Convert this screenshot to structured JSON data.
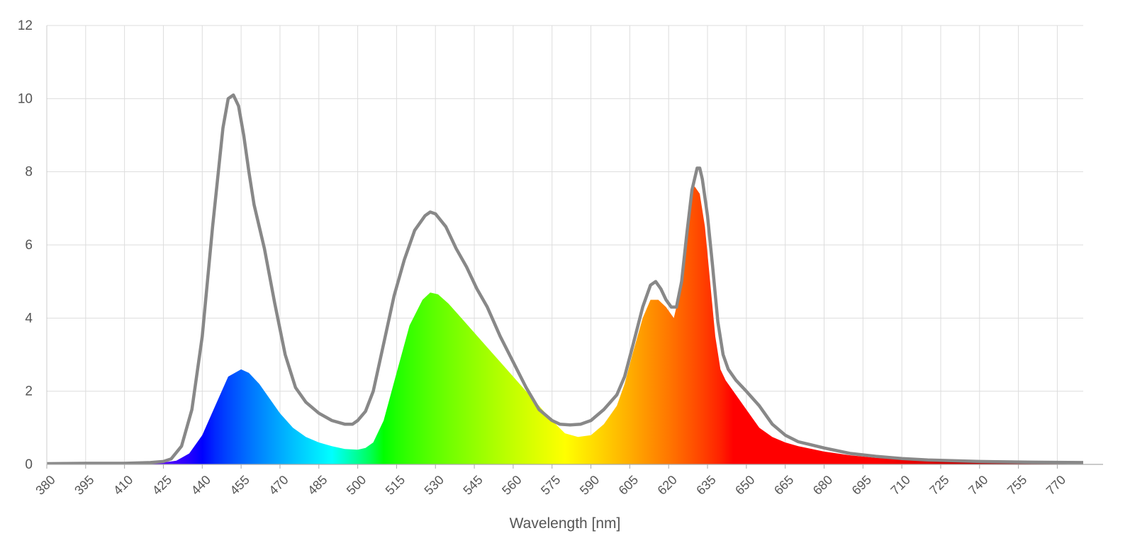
{
  "chart_data": {
    "type": "area",
    "title": "",
    "xlabel": "Wavelength [nm]",
    "ylabel": "",
    "xlim": [
      380,
      780
    ],
    "ylim": [
      0,
      12
    ],
    "yticks": [
      0,
      2,
      4,
      6,
      8,
      10,
      12
    ],
    "xticks": [
      380,
      395,
      410,
      425,
      440,
      455,
      470,
      485,
      500,
      515,
      530,
      545,
      560,
      575,
      590,
      605,
      620,
      635,
      650,
      665,
      680,
      695,
      710,
      725,
      740,
      755,
      770
    ],
    "grid": true,
    "legend": "none",
    "series": [
      {
        "style": "spectral-colored-area",
        "x": [
          380,
          395,
          410,
          420,
          425,
          430,
          435,
          440,
          445,
          450,
          455,
          458,
          462,
          466,
          470,
          475,
          480,
          485,
          490,
          495,
          500,
          503,
          506,
          510,
          515,
          520,
          525,
          528,
          531,
          535,
          540,
          545,
          550,
          555,
          560,
          565,
          570,
          575,
          580,
          585,
          590,
          595,
          600,
          603,
          606,
          610,
          613,
          616,
          619,
          622,
          624,
          626,
          628,
          630,
          632,
          634,
          636,
          638,
          640,
          642,
          645,
          650,
          655,
          660,
          665,
          670,
          680,
          690,
          700,
          710,
          720,
          740,
          760,
          770,
          780
        ],
        "values": [
          0.02,
          0.03,
          0.03,
          0.04,
          0.05,
          0.1,
          0.3,
          0.8,
          1.6,
          2.4,
          2.6,
          2.5,
          2.2,
          1.8,
          1.4,
          1.0,
          0.75,
          0.6,
          0.5,
          0.42,
          0.4,
          0.45,
          0.6,
          1.2,
          2.5,
          3.8,
          4.5,
          4.7,
          4.65,
          4.4,
          4.0,
          3.6,
          3.2,
          2.8,
          2.4,
          2.0,
          1.6,
          1.2,
          0.85,
          0.75,
          0.8,
          1.1,
          1.6,
          2.2,
          3.0,
          4.0,
          4.5,
          4.5,
          4.3,
          4.0,
          4.6,
          6.0,
          7.2,
          7.6,
          7.4,
          6.5,
          5.0,
          3.5,
          2.6,
          2.3,
          2.0,
          1.5,
          1.0,
          0.75,
          0.6,
          0.5,
          0.35,
          0.25,
          0.18,
          0.14,
          0.1,
          0.07,
          0.05,
          0.06,
          0.05
        ]
      },
      {
        "style": "gray-line",
        "color": "#888888",
        "x": [
          380,
          395,
          410,
          420,
          425,
          428,
          432,
          436,
          440,
          444,
          448,
          450,
          452,
          454,
          456,
          458,
          460,
          464,
          468,
          472,
          476,
          480,
          485,
          490,
          495,
          498,
          500,
          503,
          506,
          510,
          514,
          518,
          522,
          526,
          528,
          530,
          534,
          538,
          542,
          546,
          550,
          555,
          560,
          565,
          570,
          575,
          578,
          582,
          586,
          590,
          595,
          600,
          603,
          606,
          610,
          613,
          615,
          617,
          619,
          621,
          623,
          625,
          627,
          629,
          631,
          632,
          633,
          635,
          637,
          639,
          641,
          643,
          646,
          650,
          655,
          660,
          665,
          670,
          680,
          690,
          700,
          710,
          720,
          740,
          760,
          780
        ],
        "values": [
          0.02,
          0.03,
          0.03,
          0.05,
          0.08,
          0.15,
          0.5,
          1.5,
          3.5,
          6.5,
          9.2,
          10.0,
          10.1,
          9.8,
          9.0,
          8.0,
          7.1,
          5.9,
          4.4,
          3.0,
          2.1,
          1.7,
          1.4,
          1.2,
          1.1,
          1.1,
          1.2,
          1.45,
          2.0,
          3.3,
          4.6,
          5.6,
          6.4,
          6.8,
          6.9,
          6.85,
          6.5,
          5.9,
          5.4,
          4.8,
          4.3,
          3.5,
          2.8,
          2.1,
          1.5,
          1.2,
          1.1,
          1.08,
          1.1,
          1.2,
          1.5,
          1.9,
          2.4,
          3.2,
          4.3,
          4.9,
          5.0,
          4.8,
          4.5,
          4.3,
          4.3,
          5.0,
          6.3,
          7.5,
          8.1,
          8.1,
          7.8,
          6.8,
          5.4,
          3.9,
          3.0,
          2.6,
          2.3,
          2.0,
          1.6,
          1.1,
          0.8,
          0.62,
          0.45,
          0.3,
          0.22,
          0.16,
          0.12,
          0.08,
          0.06,
          0.05
        ]
      }
    ]
  }
}
